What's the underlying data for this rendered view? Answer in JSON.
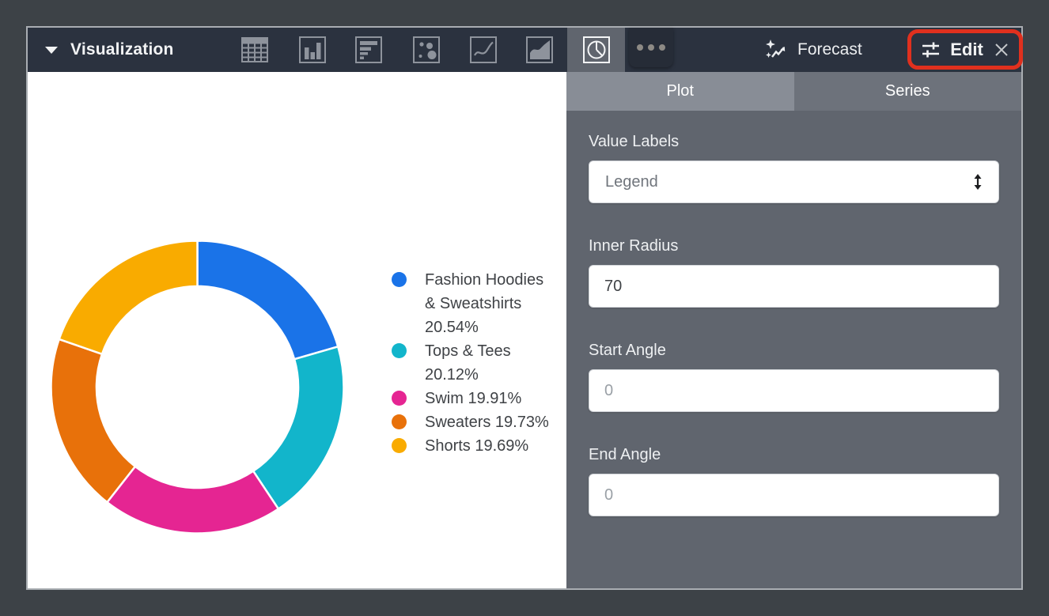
{
  "toolbar": {
    "title": "Visualization",
    "chart_types": [
      {
        "name": "table"
      },
      {
        "name": "column"
      },
      {
        "name": "bar"
      },
      {
        "name": "scatter"
      },
      {
        "name": "line"
      },
      {
        "name": "area"
      },
      {
        "name": "pie",
        "selected": true
      }
    ],
    "more_label": "more-options",
    "forecast_label": "Forecast",
    "edit_label": "Edit"
  },
  "panel": {
    "tabs": [
      {
        "label": "Plot",
        "selected": true
      },
      {
        "label": "Series",
        "selected": false
      }
    ],
    "value_labels": {
      "label": "Value Labels",
      "value": "Legend"
    },
    "inner_radius": {
      "label": "Inner Radius",
      "value": "70"
    },
    "start_angle": {
      "label": "Start Angle",
      "value": "",
      "placeholder": "0"
    },
    "end_angle": {
      "label": "End Angle",
      "value": "",
      "placeholder": "0"
    }
  },
  "chart_data": {
    "type": "pie",
    "subtype": "donut",
    "inner_radius_pct": 70,
    "start_angle": 0,
    "categories": [
      "Fashion Hoodies & Sweatshirts",
      "Tops & Tees",
      "Swim",
      "Sweaters",
      "Shorts"
    ],
    "values": [
      20.54,
      20.12,
      19.91,
      19.73,
      19.69
    ],
    "colors": [
      "#1A73E8",
      "#12B5CB",
      "#E52592",
      "#E8710A",
      "#F9AB00"
    ],
    "value_format": "percent",
    "legend_position": "right"
  },
  "colors": {
    "toolbar_bg": "#2b323f",
    "panel_bg": "#60656e",
    "tab_selected_bg": "#888d96",
    "tab_bg": "#6d727b",
    "annotation_highlight": "#e0301e",
    "frame_bg": "#3d4247"
  }
}
